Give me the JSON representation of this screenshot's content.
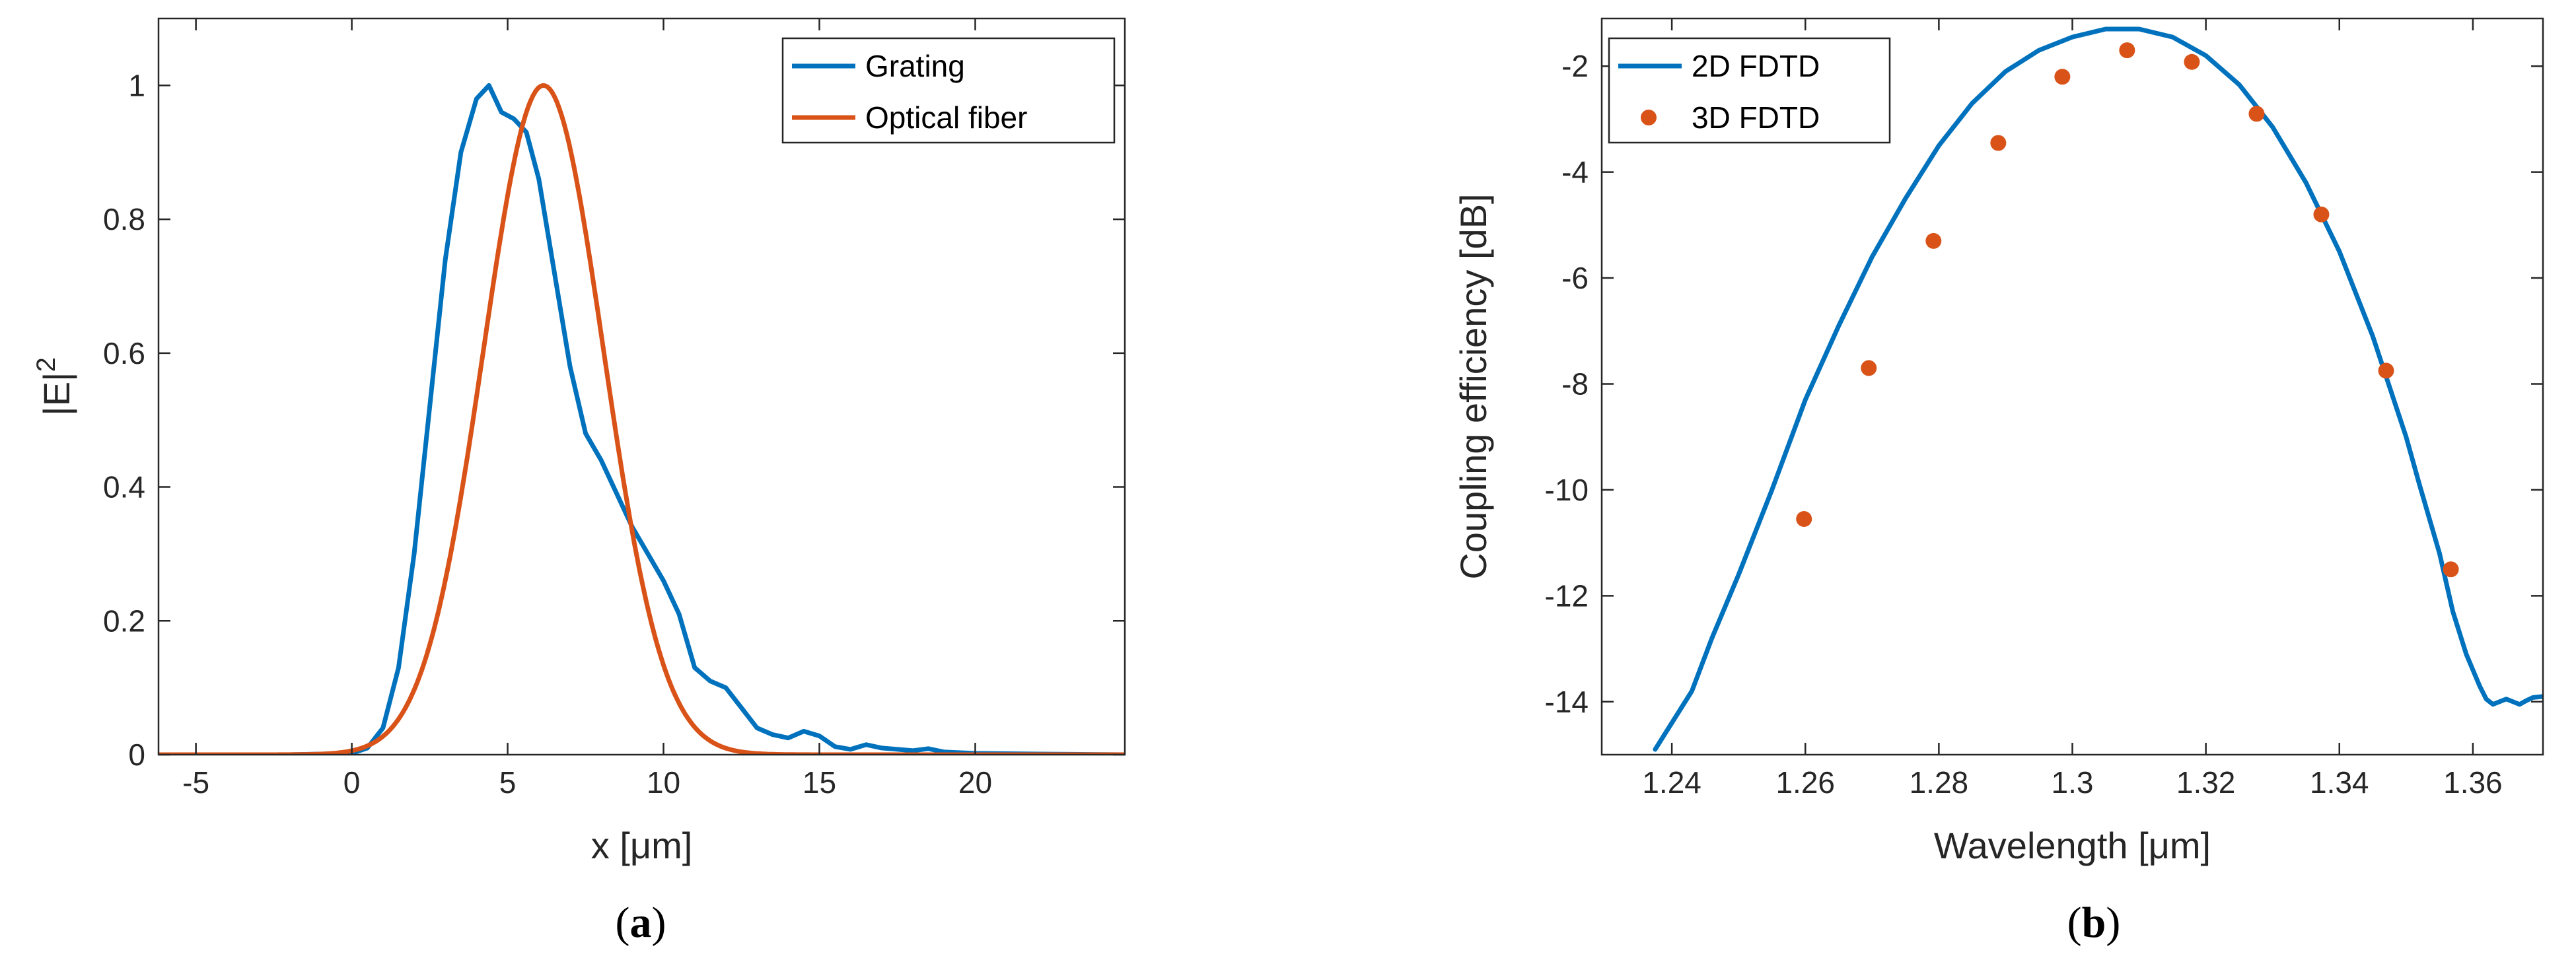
{
  "colors": {
    "grating": "#0072BD",
    "fiber": "#D95319",
    "fdtd2d": "#0072BD",
    "fdtd3d": "#D95319",
    "axis": "#262626"
  },
  "chart_data": [
    {
      "type": "line",
      "panel_label": "a",
      "title": "",
      "xlabel": "x [μm]",
      "ylabel": "|E|",
      "ylabel_superscript": "2",
      "xlim": [
        -6.2,
        24.8
      ],
      "ylim": [
        0,
        1.1
      ],
      "xticks": [
        -5,
        0,
        5,
        10,
        15,
        20
      ],
      "yticks": [
        0,
        0.2,
        0.4,
        0.6,
        0.8,
        1
      ],
      "xtick_labels": [
        "-5",
        "0",
        "5",
        "10",
        "15",
        "20"
      ],
      "ytick_labels": [
        "0",
        "0.2",
        "0.4",
        "0.6",
        "0.8",
        "1"
      ],
      "legend_position": "top-right",
      "series": [
        {
          "name": "Grating",
          "style": "line",
          "x": [
            -6.2,
            -2,
            0,
            0.5,
            1,
            1.5,
            2,
            2.5,
            3,
            3.5,
            4,
            4.4,
            4.8,
            5.2,
            5.6,
            6.0,
            6.5,
            7.0,
            7.5,
            8.0,
            8.5,
            9.0,
            9.5,
            10.0,
            10.5,
            11.0,
            11.5,
            12.0,
            12.5,
            13.0,
            13.5,
            14.0,
            14.5,
            15.0,
            15.5,
            16.0,
            16.5,
            17.0,
            17.5,
            18.0,
            18.5,
            19.0,
            20.0,
            22.0,
            24.8
          ],
          "y": [
            0,
            0,
            0.002,
            0.01,
            0.04,
            0.13,
            0.3,
            0.52,
            0.74,
            0.9,
            0.98,
            1.0,
            0.96,
            0.95,
            0.93,
            0.86,
            0.72,
            0.58,
            0.48,
            0.44,
            0.39,
            0.34,
            0.3,
            0.26,
            0.21,
            0.13,
            0.11,
            0.1,
            0.07,
            0.04,
            0.03,
            0.025,
            0.035,
            0.028,
            0.012,
            0.008,
            0.015,
            0.01,
            0.008,
            0.006,
            0.009,
            0.004,
            0.002,
            0.001,
            0
          ]
        },
        {
          "name": "Optical fiber",
          "style": "line",
          "gaussian": {
            "amplitude": 1,
            "center": 6.15,
            "sigma": 1.92
          }
        }
      ]
    },
    {
      "type": "line",
      "panel_label": "b",
      "title": "",
      "xlabel": "Wavelength [μm]",
      "ylabel": "Coupling efficiency [dB]",
      "xlim": [
        1.2295,
        1.3705
      ],
      "ylim": [
        -15,
        -1.1
      ],
      "xticks": [
        1.24,
        1.26,
        1.28,
        1.3,
        1.32,
        1.34,
        1.36
      ],
      "yticks": [
        -14,
        -12,
        -10,
        -8,
        -6,
        -4,
        -2
      ],
      "xtick_labels": [
        "1.24",
        "1.26",
        "1.28",
        "1.3",
        "1.32",
        "1.34",
        "1.36"
      ],
      "ytick_labels": [
        "-14",
        "-12",
        "-10",
        "-8",
        "-6",
        "-4",
        "-2"
      ],
      "legend_position": "top-left",
      "series": [
        {
          "name": "2D FDTD",
          "style": "line",
          "x": [
            1.2375,
            1.24,
            1.243,
            1.246,
            1.25,
            1.255,
            1.26,
            1.265,
            1.27,
            1.275,
            1.28,
            1.285,
            1.29,
            1.295,
            1.3,
            1.305,
            1.31,
            1.315,
            1.32,
            1.325,
            1.33,
            1.335,
            1.34,
            1.345,
            1.35,
            1.352,
            1.355,
            1.357,
            1.359,
            1.361,
            1.362,
            1.363,
            1.364,
            1.365,
            1.366,
            1.367,
            1.368,
            1.369,
            1.3705
          ],
          "y": [
            -14.9,
            -14.4,
            -13.8,
            -12.8,
            -11.6,
            -10.0,
            -8.3,
            -6.9,
            -5.6,
            -4.5,
            -3.5,
            -2.7,
            -2.1,
            -1.7,
            -1.45,
            -1.3,
            -1.3,
            -1.45,
            -1.8,
            -2.35,
            -3.15,
            -4.2,
            -5.5,
            -7.1,
            -9.0,
            -9.9,
            -11.2,
            -12.3,
            -13.1,
            -13.7,
            -13.95,
            -14.05,
            -14.0,
            -13.95,
            -14.0,
            -14.05,
            -13.98,
            -13.92,
            -13.9
          ]
        },
        {
          "name": "3D FDTD",
          "style": "markers",
          "x": [
            1.2598,
            1.2695,
            1.2792,
            1.2889,
            1.2985,
            1.3082,
            1.3179,
            1.3276,
            1.3373,
            1.347,
            1.3567
          ],
          "y": [
            -10.55,
            -7.7,
            -5.3,
            -3.45,
            -2.2,
            -1.7,
            -1.92,
            -2.9,
            -4.8,
            -7.75,
            -11.5
          ]
        }
      ]
    }
  ]
}
